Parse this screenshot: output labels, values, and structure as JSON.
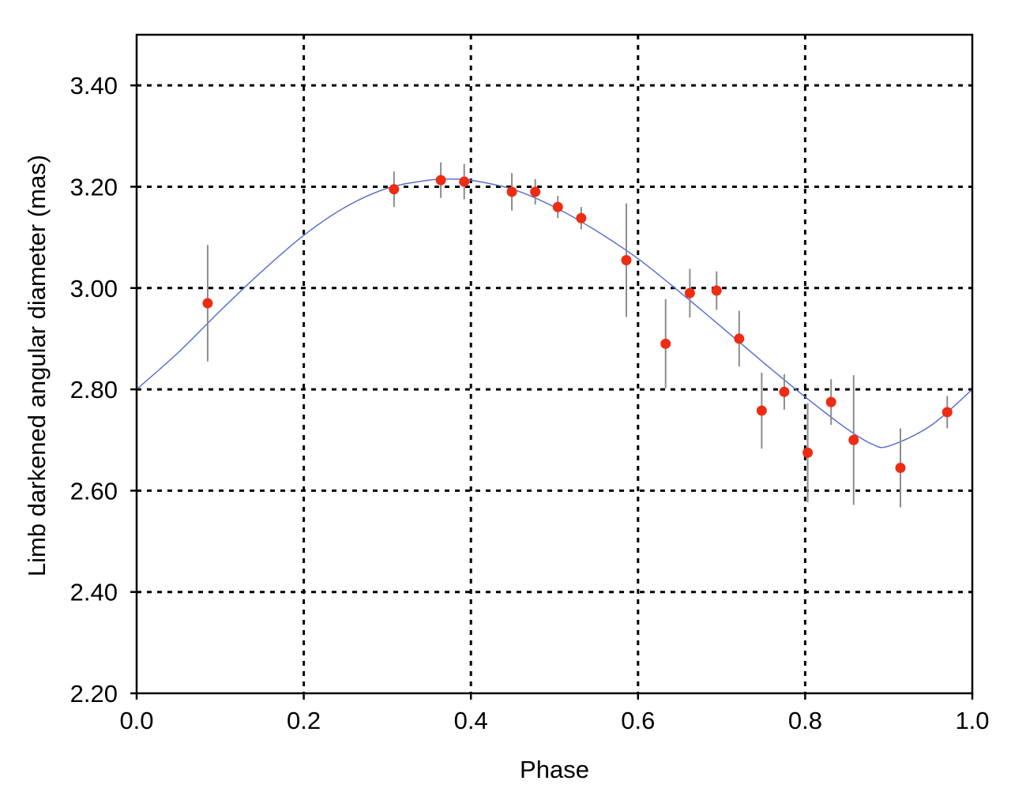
{
  "chart_data": {
    "type": "scatter",
    "xlabel": "Phase",
    "ylabel": "Limb darkened angular diameter (mas)",
    "xlim": [
      0.0,
      1.0
    ],
    "ylim": [
      2.2,
      3.5
    ],
    "x_ticks": [
      "0.0",
      "0.2",
      "0.4",
      "0.6",
      "0.8",
      "1.0"
    ],
    "x_tick_values": [
      0.0,
      0.2,
      0.4,
      0.6,
      0.8,
      1.0
    ],
    "y_ticks": [
      "2.20",
      "2.40",
      "2.60",
      "2.80",
      "3.00",
      "3.20",
      "3.40"
    ],
    "y_tick_values": [
      2.2,
      2.4,
      2.6,
      2.8,
      3.0,
      3.2,
      3.4
    ],
    "grid": true,
    "series": [
      {
        "kind": "points_with_errorbars",
        "color": "#ee2c14",
        "x": [
          0.085,
          0.308,
          0.364,
          0.392,
          0.449,
          0.477,
          0.504,
          0.532,
          0.586,
          0.633,
          0.662,
          0.694,
          0.721,
          0.748,
          0.775,
          0.803,
          0.831,
          0.858,
          0.914,
          0.97
        ],
        "y": [
          2.97,
          3.195,
          3.213,
          3.21,
          3.19,
          3.19,
          3.16,
          3.138,
          3.055,
          2.89,
          2.99,
          2.995,
          2.9,
          2.758,
          2.795,
          2.675,
          2.775,
          2.7,
          2.645,
          2.755
        ],
        "err": [
          0.115,
          0.035,
          0.035,
          0.035,
          0.037,
          0.025,
          0.022,
          0.022,
          0.112,
          0.088,
          0.048,
          0.038,
          0.055,
          0.075,
          0.035,
          0.098,
          0.045,
          0.128,
          0.078,
          0.032
        ]
      },
      {
        "kind": "fit_curve",
        "color": "#5a6fd0",
        "x": [
          0.0,
          0.05,
          0.1,
          0.15,
          0.2,
          0.25,
          0.3,
          0.35,
          0.38,
          0.4,
          0.45,
          0.5,
          0.55,
          0.6,
          0.65,
          0.7,
          0.75,
          0.8,
          0.85,
          0.88,
          0.9,
          0.95,
          1.0
        ],
        "y": [
          2.8,
          2.873,
          2.955,
          3.033,
          3.104,
          3.16,
          3.197,
          3.213,
          3.215,
          3.213,
          3.195,
          3.16,
          3.113,
          3.058,
          2.992,
          2.923,
          2.853,
          2.785,
          2.722,
          2.692,
          2.688,
          2.728,
          2.8
        ]
      }
    ]
  }
}
